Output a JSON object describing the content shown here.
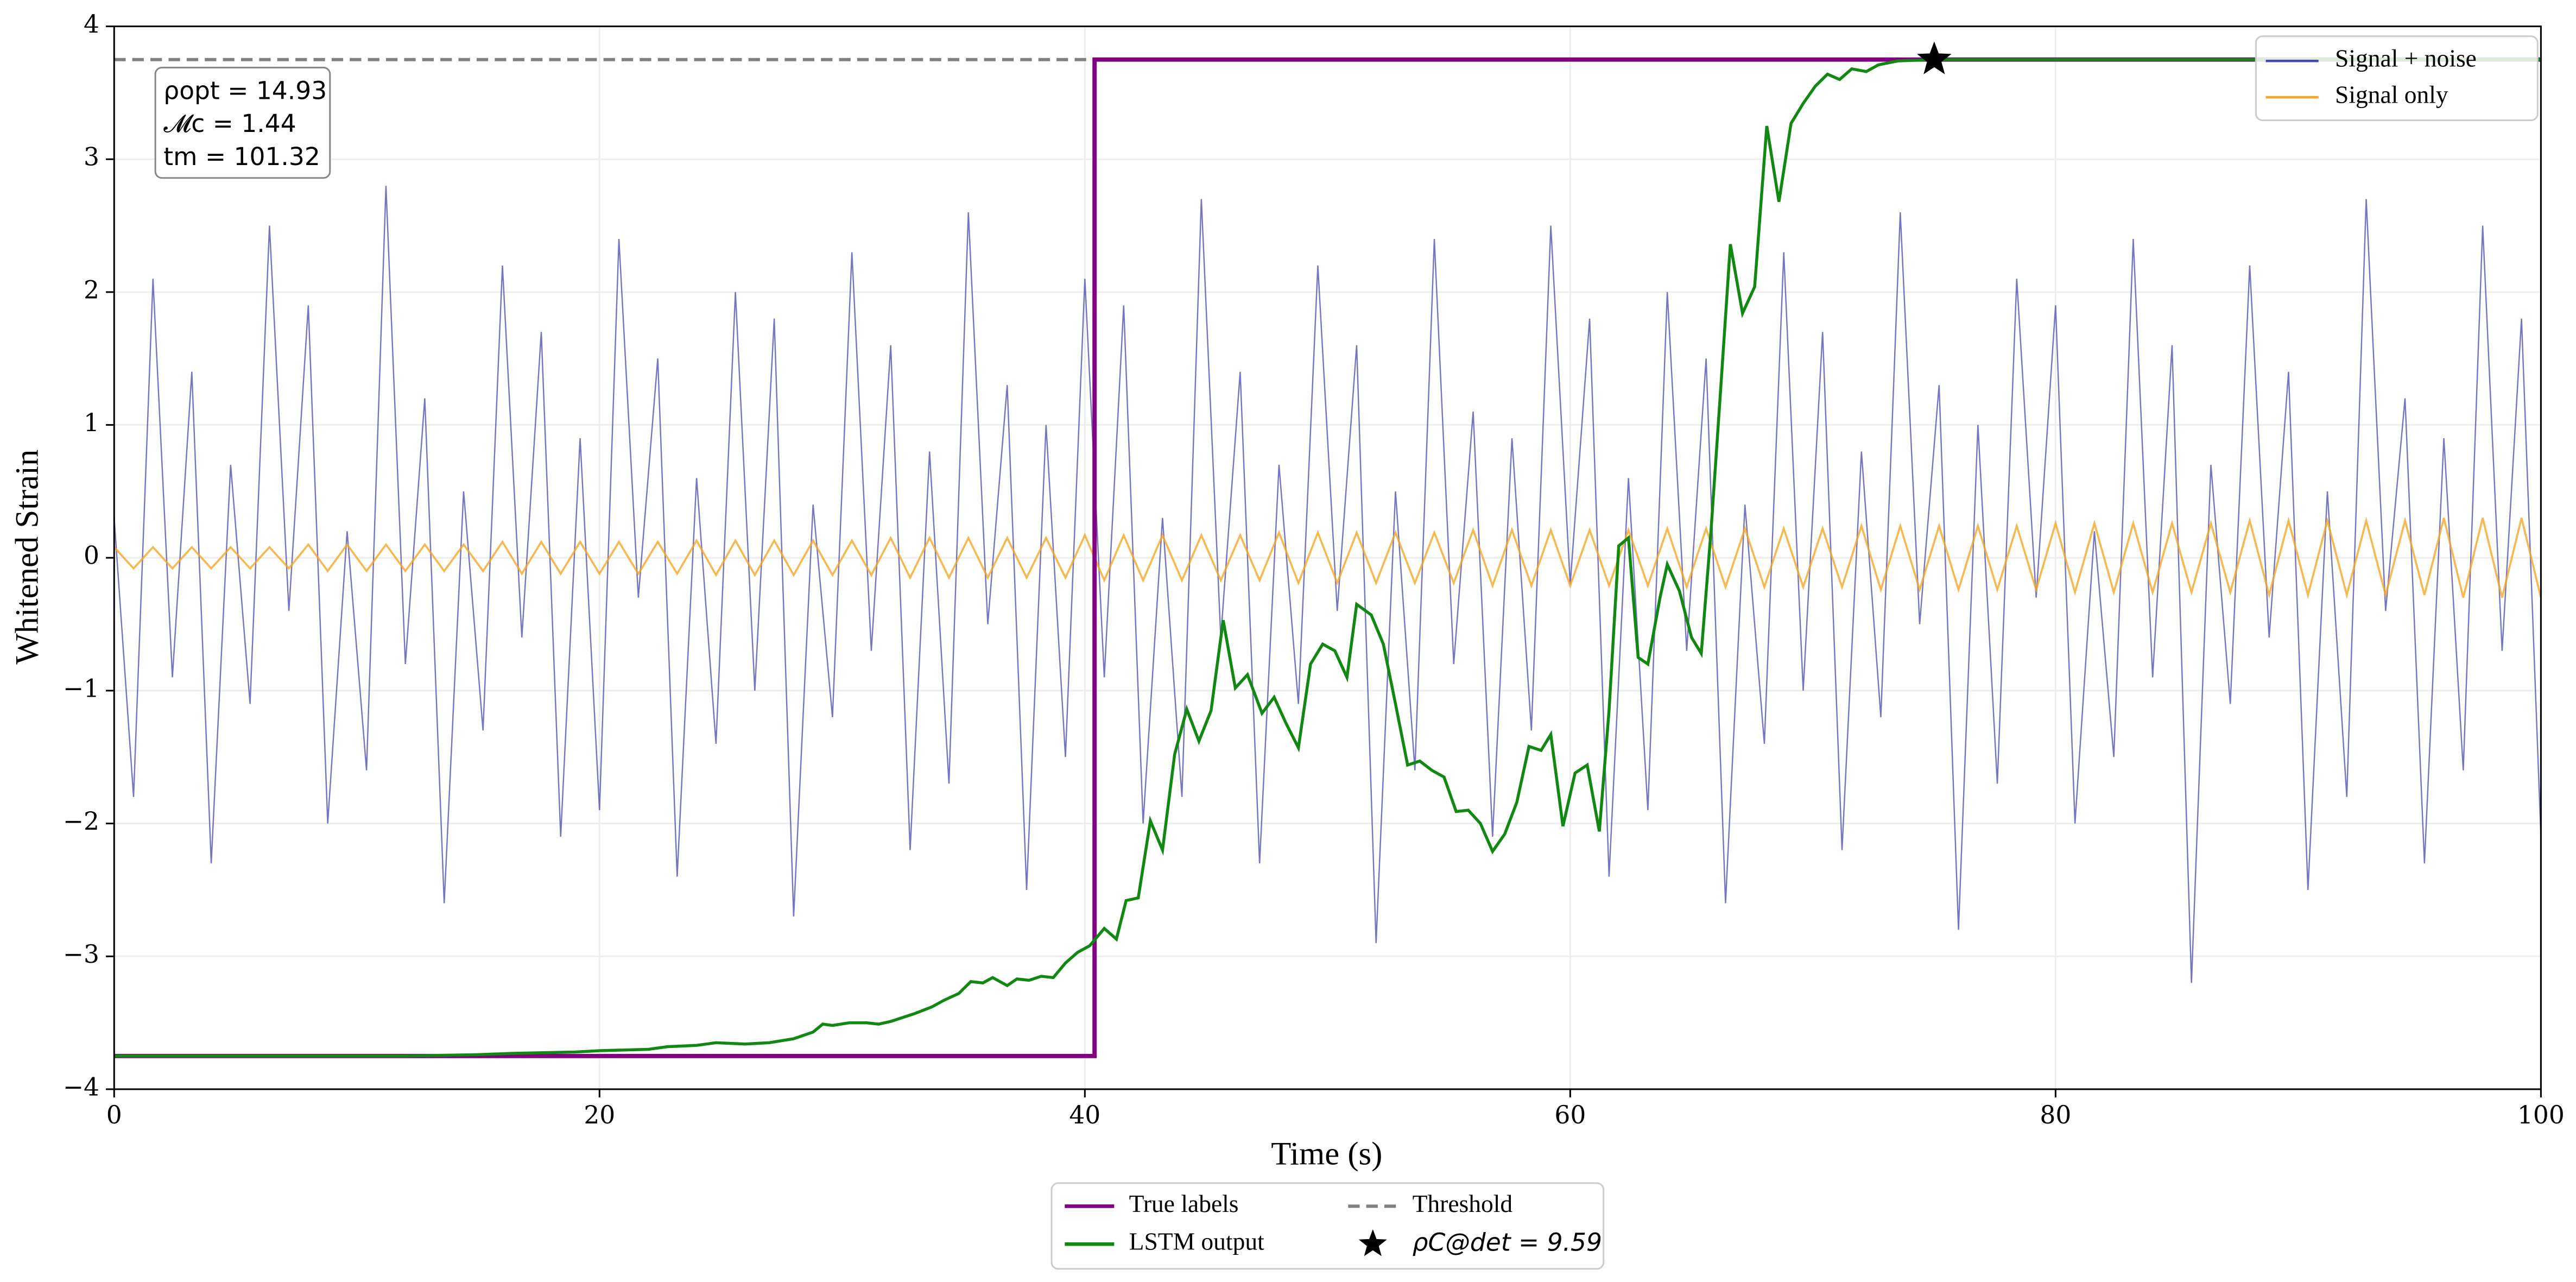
{
  "chart_data": {
    "type": "line",
    "xlabel": "Time (s)",
    "ylabel": "Whitened Strain",
    "xlim": [
      0,
      100
    ],
    "ylim": [
      -4,
      4
    ],
    "xticks": [
      0,
      20,
      40,
      60,
      80,
      100
    ],
    "yticks": [
      {
        "value": -4,
        "label": "−4"
      },
      {
        "value": -3,
        "label": "−3"
      },
      {
        "value": -2,
        "label": "−2"
      },
      {
        "value": -1,
        "label": "−1"
      },
      0,
      1,
      2,
      3,
      4
    ],
    "grid": true,
    "annotation": [
      "ρopt = 14.93",
      "𝓜c = 1.44",
      "tm = 101.32"
    ],
    "x": [
      0,
      0.8,
      1.6,
      2.4,
      3.2,
      4,
      4.8,
      5.6,
      6.4,
      7.2,
      8,
      8.8,
      9.6,
      10.4,
      11.2,
      12,
      12.8,
      13.6,
      14.4,
      15.2,
      16,
      16.8,
      17.6,
      18.4,
      19.2,
      20,
      20.8,
      21.6,
      22.4,
      23.2,
      24,
      24.8,
      25.6,
      26.4,
      27.2,
      28,
      28.8,
      29.6,
      30.4,
      31.2,
      32,
      32.8,
      33.6,
      34.4,
      35.2,
      36,
      36.8,
      37.6,
      38.4,
      39.2,
      40,
      40.8,
      41.6,
      42.4,
      43.2,
      44,
      44.8,
      45.6,
      46.4,
      47.2,
      48,
      48.8,
      49.6,
      50.4,
      51.2,
      52,
      52.8,
      53.6,
      54.4,
      55.2,
      56,
      56.8,
      57.6,
      58.4,
      59.2,
      60,
      60.8,
      61.6,
      62.4,
      63.2,
      64,
      64.8,
      65.6,
      66.4,
      67.2,
      68,
      68.8,
      69.6,
      70.4,
      71.2,
      72,
      72.8,
      73.6,
      74.4,
      75.2,
      76,
      76.8,
      77.6,
      78.4,
      79.2,
      80,
      80.8,
      81.6,
      82.4,
      83.2,
      84,
      84.8,
      85.6,
      86.4,
      87.2,
      88,
      88.8,
      89.6,
      90.4,
      91.2,
      92,
      92.8,
      93.6,
      94.4,
      95.2,
      96,
      96.8,
      97.6,
      98.4,
      99.2,
      100
    ],
    "series": [
      {
        "name": "Signal + noise",
        "color": "#4747b0",
        "legend": "upper right",
        "values": [
          0.3,
          -1.8,
          2.1,
          -0.9,
          1.4,
          -2.3,
          0.7,
          -1.1,
          2.5,
          -0.4,
          1.9,
          -2.0,
          0.2,
          -1.6,
          2.8,
          -0.8,
          1.2,
          -2.6,
          0.5,
          -1.3,
          2.2,
          -0.6,
          1.7,
          -2.1,
          0.9,
          -1.9,
          2.4,
          -0.3,
          1.5,
          -2.4,
          0.6,
          -1.4,
          2.0,
          -1.0,
          1.8,
          -2.7,
          0.4,
          -1.2,
          2.3,
          -0.7,
          1.6,
          -2.2,
          0.8,
          -1.7,
          2.6,
          -0.5,
          1.3,
          -2.5,
          1.0,
          -1.5,
          2.1,
          -0.9,
          1.9,
          -2.0,
          0.3,
          -1.8,
          2.7,
          -0.6,
          1.4,
          -2.3,
          0.7,
          -1.1,
          2.2,
          -0.4,
          1.6,
          -2.9,
          0.5,
          -1.6,
          2.4,
          -0.8,
          1.1,
          -2.1,
          0.9,
          -1.3,
          2.5,
          -0.2,
          1.8,
          -2.4,
          0.6,
          -1.9,
          2.0,
          -0.7,
          1.5,
          -2.6,
          0.4,
          -1.4,
          2.3,
          -1.0,
          1.7,
          -2.2,
          0.8,
          -1.2,
          2.6,
          -0.5,
          1.3,
          -2.8,
          1.0,
          -1.7,
          2.1,
          -0.3,
          1.9,
          -2.0,
          0.2,
          -1.5,
          2.4,
          -0.9,
          1.6,
          -3.2,
          0.7,
          -1.1,
          2.2,
          -0.6,
          1.4,
          -2.5,
          0.5,
          -1.8,
          2.7,
          -0.4,
          1.2,
          -2.3,
          0.9,
          -1.6,
          2.5,
          -0.7,
          1.8,
          -2.1
        ]
      },
      {
        "name": "Signal only",
        "color": "#f5a623",
        "legend": "upper right",
        "values": [
          0.08,
          -0.08,
          0.08,
          -0.08,
          0.08,
          -0.08,
          0.08,
          -0.08,
          0.08,
          -0.08,
          0.1,
          -0.1,
          0.1,
          -0.1,
          0.1,
          -0.1,
          0.1,
          -0.1,
          0.1,
          -0.1,
          0.12,
          -0.12,
          0.12,
          -0.12,
          0.12,
          -0.12,
          0.12,
          -0.12,
          0.12,
          -0.12,
          0.13,
          -0.13,
          0.13,
          -0.13,
          0.13,
          -0.13,
          0.13,
          -0.13,
          0.13,
          -0.13,
          0.15,
          -0.15,
          0.15,
          -0.15,
          0.15,
          -0.15,
          0.15,
          -0.15,
          0.15,
          -0.15,
          0.17,
          -0.17,
          0.17,
          -0.17,
          0.17,
          -0.17,
          0.17,
          -0.17,
          0.17,
          -0.17,
          0.19,
          -0.19,
          0.19,
          -0.19,
          0.19,
          -0.19,
          0.19,
          -0.19,
          0.19,
          -0.19,
          0.21,
          -0.21,
          0.21,
          -0.21,
          0.21,
          -0.21,
          0.21,
          -0.21,
          0.21,
          -0.21,
          0.22,
          -0.22,
          0.22,
          -0.22,
          0.22,
          -0.22,
          0.22,
          -0.22,
          0.22,
          -0.22,
          0.24,
          -0.24,
          0.24,
          -0.24,
          0.24,
          -0.24,
          0.24,
          -0.24,
          0.24,
          -0.24,
          0.26,
          -0.26,
          0.26,
          -0.26,
          0.26,
          -0.26,
          0.26,
          -0.26,
          0.26,
          -0.26,
          0.28,
          -0.28,
          0.28,
          -0.28,
          0.28,
          -0.28,
          0.28,
          -0.28,
          0.28,
          -0.28,
          0.3,
          -0.3,
          0.3,
          -0.3,
          0.3,
          -0.3
        ]
      },
      {
        "name": "True labels",
        "color": "#800080",
        "legend": "lower center",
        "x": [
          0,
          40.4,
          40.4,
          100
        ],
        "values": [
          -3.75,
          -3.75,
          3.75,
          3.75
        ]
      },
      {
        "name": "LSTM output",
        "color": "#118811",
        "legend": "lower center",
        "x": [
          0,
          5,
          10,
          12,
          15,
          16.5,
          19,
          20,
          22,
          22.8,
          24,
          24.8,
          26,
          27,
          28,
          28.8,
          29.2,
          29.6,
          30.3,
          31,
          31.5,
          32,
          33,
          33.7,
          34.2,
          34.8,
          35.3,
          35.8,
          36.2,
          36.8,
          37.2,
          37.7,
          38.2,
          38.7,
          39.2,
          39.7,
          40.2,
          40.8,
          41.3,
          41.7,
          42.2,
          42.7,
          43.2,
          43.7,
          44.2,
          44.7,
          45.2,
          45.7,
          46.2,
          46.7,
          47.3,
          47.8,
          48.3,
          48.8,
          49.3,
          49.8,
          50.3,
          50.8,
          51.2,
          51.8,
          52.3,
          52.8,
          53.3,
          53.8,
          54.3,
          54.8,
          55.3,
          55.8,
          56.3,
          56.8,
          57.3,
          57.8,
          58.3,
          58.8,
          59.2,
          59.7,
          60.2,
          60.7,
          61.2,
          61.6,
          62,
          62.4,
          62.8,
          63.2,
          63.7,
          64,
          64.5,
          65,
          65.4,
          65.8,
          66.2,
          66.6,
          67.1,
          67.6,
          68.1,
          68.6,
          69.1,
          69.6,
          70.1,
          70.6,
          71.1,
          71.6,
          72.2,
          72.7,
          73.5,
          75,
          100
        ],
        "values": [
          -3.75,
          -3.75,
          -3.75,
          -3.75,
          -3.74,
          -3.73,
          -3.72,
          -3.71,
          -3.7,
          -3.68,
          -3.67,
          -3.65,
          -3.66,
          -3.65,
          -3.62,
          -3.57,
          -3.51,
          -3.52,
          -3.5,
          -3.5,
          -3.51,
          -3.49,
          -3.43,
          -3.38,
          -3.33,
          -3.28,
          -3.19,
          -3.2,
          -3.16,
          -3.22,
          -3.17,
          -3.18,
          -3.15,
          -3.16,
          -3.05,
          -2.97,
          -2.92,
          -2.79,
          -2.87,
          -2.58,
          -2.56,
          -1.98,
          -2.2,
          -1.48,
          -1.14,
          -1.38,
          -1.15,
          -0.47,
          -0.98,
          -0.88,
          -1.17,
          -1.05,
          -1.25,
          -1.43,
          -0.8,
          -0.65,
          -0.7,
          -0.9,
          -0.35,
          -0.43,
          -0.65,
          -1.1,
          -1.56,
          -1.53,
          -1.6,
          -1.65,
          -1.91,
          -1.9,
          -2.0,
          -2.21,
          -2.08,
          -1.84,
          -1.42,
          -1.45,
          -1.33,
          -2.02,
          -1.62,
          -1.56,
          -2.06,
          -1.15,
          0.09,
          0.15,
          -0.75,
          -0.8,
          -0.3,
          -0.05,
          -0.25,
          -0.6,
          -0.72,
          0.2,
          1.27,
          2.36,
          1.84,
          2.04,
          3.25,
          2.68,
          3.27,
          3.42,
          3.55,
          3.64,
          3.6,
          3.68,
          3.66,
          3.71,
          3.74,
          3.75,
          3.75
        ]
      }
    ],
    "threshold": {
      "name": "Threshold",
      "value": 3.75,
      "color": "#808080"
    },
    "marker": {
      "name": "ρC@det = 9.59",
      "x": 75,
      "y": 3.75,
      "color": "#000000"
    }
  }
}
